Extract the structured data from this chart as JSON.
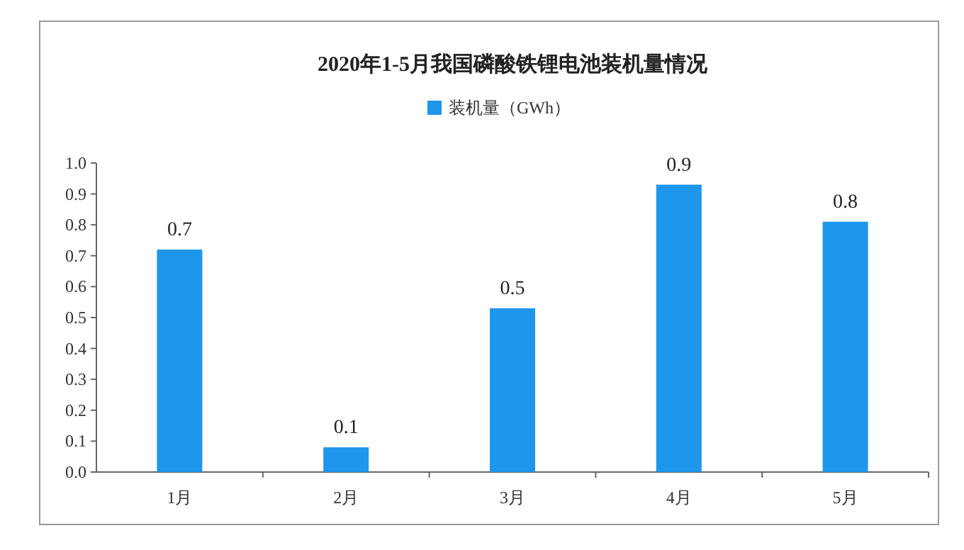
{
  "chart_data": {
    "type": "bar",
    "title": "2020年1-5月我国磷酸铁锂电池装机量情况",
    "categories": [
      "1月",
      "2月",
      "3月",
      "4月",
      "5月"
    ],
    "series": [
      {
        "name": "装机量（GWh）",
        "color": "#1e96eb",
        "values": [
          0.72,
          0.08,
          0.53,
          0.93,
          0.81
        ],
        "value_labels": [
          "0.7",
          "0.1",
          "0.5",
          "0.9",
          "0.8"
        ]
      }
    ],
    "ylim": [
      0,
      1.0
    ],
    "yticks": [
      "0.0",
      "0.1",
      "0.2",
      "0.3",
      "0.4",
      "0.5",
      "0.6",
      "0.7",
      "0.8",
      "0.9",
      "1.0"
    ],
    "grid": false,
    "legend": "top"
  }
}
